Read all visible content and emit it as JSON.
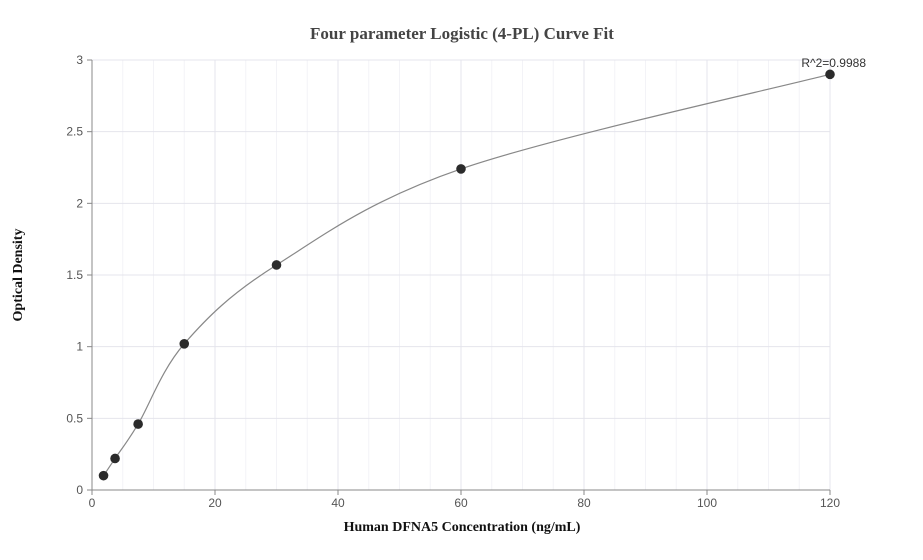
{
  "chart_data": {
    "type": "scatter",
    "title": "Four parameter Logistic (4-PL) Curve Fit",
    "xlabel": "Human DFNA5 Concentration (ng/mL)",
    "ylabel": "Optical Density",
    "xlim": [
      0,
      120
    ],
    "ylim": [
      0,
      3
    ],
    "x_ticks": [
      0,
      20,
      40,
      60,
      80,
      100,
      120
    ],
    "y_ticks": [
      0,
      0.5,
      1,
      1.5,
      2,
      2.5,
      3
    ],
    "x_tick_labels": [
      "0",
      "20",
      "40",
      "60",
      "80",
      "100",
      "120"
    ],
    "y_tick_labels": [
      "0",
      "0.5",
      "1",
      "1.5",
      "2",
      "2.5",
      "3"
    ],
    "grid": true,
    "annotation": "R^2=0.9988",
    "series": [
      {
        "x": [
          1.875,
          3.75,
          7.5,
          15,
          30,
          60,
          120
        ],
        "y": [
          0.1,
          0.22,
          0.46,
          1.02,
          1.57,
          2.24,
          2.9
        ]
      }
    ],
    "colors": {
      "points": "#2b2b2b",
      "curve": "#888888",
      "grid": "#e4e4ec"
    }
  }
}
